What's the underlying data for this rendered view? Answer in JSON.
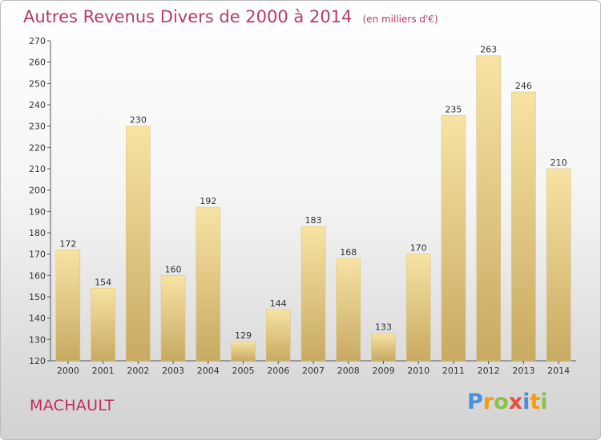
{
  "header": {
    "title": "Autres Revenus Divers de 2000 à 2014",
    "subtitle": "(en milliers d'€)"
  },
  "commune": "MACHAULT",
  "logo": {
    "text": "Proxiti",
    "letters": [
      {
        "ch": "P",
        "color": "#4a90d9"
      },
      {
        "ch": "r",
        "color": "#f39c12"
      },
      {
        "ch": "o",
        "color": "#8bc34a"
      },
      {
        "ch": "x",
        "color": "#e74c3c"
      },
      {
        "ch": "i",
        "color": "#4a90d9"
      },
      {
        "ch": "t",
        "color": "#f39c12"
      },
      {
        "ch": "i",
        "color": "#8bc34a"
      }
    ]
  },
  "chart_data": {
    "type": "bar",
    "categories": [
      "2000",
      "2001",
      "2002",
      "2003",
      "2004",
      "2005",
      "2006",
      "2007",
      "2008",
      "2009",
      "2010",
      "2011",
      "2012",
      "2013",
      "2014"
    ],
    "values": [
      172,
      154,
      230,
      160,
      192,
      129,
      144,
      183,
      168,
      133,
      170,
      235,
      263,
      246,
      210
    ],
    "title": "Autres Revenus Divers de 2000 à 2014",
    "subtitle": "(en milliers d'€)",
    "xlabel": "",
    "ylabel": "",
    "ylim": [
      120,
      270
    ],
    "yticks": [
      120,
      130,
      140,
      150,
      160,
      170,
      180,
      190,
      200,
      210,
      220,
      230,
      240,
      250,
      260,
      270
    ],
    "grid": false,
    "legend": "none",
    "colors": {
      "bar_top": "#f7e3a3",
      "bar_bottom": "#c8aa62",
      "axis": "#555555",
      "text": "#333333"
    }
  }
}
